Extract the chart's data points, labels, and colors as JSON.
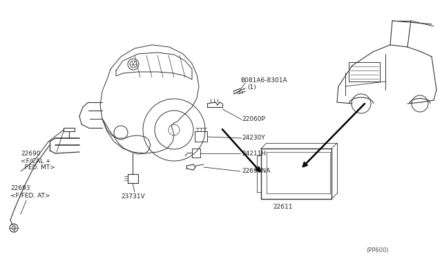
{
  "bg_color": "#ffffff",
  "line_color": "#333333",
  "fig_width": 6.4,
  "fig_height": 3.72,
  "dpi": 100,
  "labels": {
    "B081A6": "B081A6-8301A",
    "B081A6_sub": "(1)",
    "22060P": "22060P",
    "24230Y": "24230Y",
    "24211H": "24211H",
    "22690NA": "22690NA",
    "22690_a": "22690",
    "22690_b": "<F/CAL +",
    "22690_c": "  FED. MT>",
    "22693_a": "22693",
    "22693_b": "<F/FED. AT>",
    "23731V": "23731V",
    "22611": "22611",
    "PP600": "(PP600)"
  }
}
